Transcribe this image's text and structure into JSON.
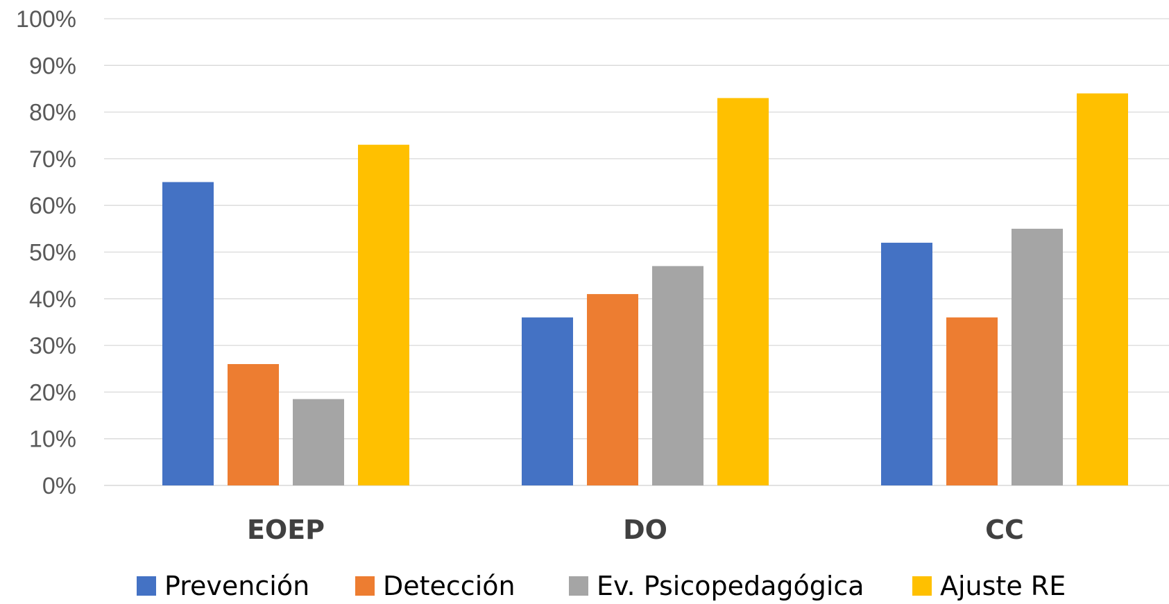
{
  "chart_data": {
    "type": "bar",
    "title": "",
    "xlabel": "",
    "ylabel": "",
    "categories": [
      "EOEP",
      "DO",
      "CC"
    ],
    "series": [
      {
        "name": "Prevención",
        "color": "#4472C4",
        "values": [
          65,
          36,
          52
        ]
      },
      {
        "name": "Detección",
        "color": "#ED7D31",
        "values": [
          26,
          41,
          36
        ]
      },
      {
        "name": "Ev. Psicopedagógica",
        "color": "#A5A5A5",
        "values": [
          18.5,
          47,
          55
        ]
      },
      {
        "name": "Ajuste RE",
        "color": "#FFC000",
        "values": [
          73,
          83,
          84
        ]
      }
    ],
    "ylim": [
      0,
      100
    ],
    "y_ticks": [
      "0%",
      "10%",
      "20%",
      "30%",
      "40%",
      "50%",
      "60%",
      "70%",
      "80%",
      "90%",
      "100%"
    ],
    "grid": true,
    "legend_position": "bottom",
    "gridline_color": "#D9D9D9"
  }
}
